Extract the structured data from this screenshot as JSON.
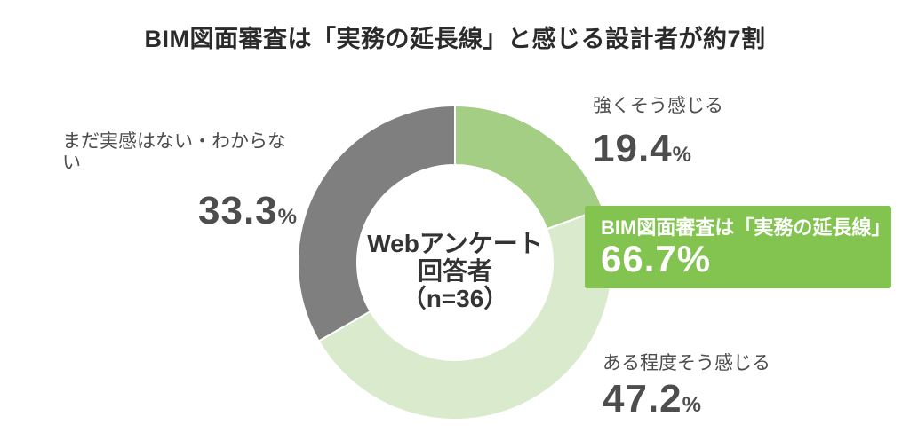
{
  "title": "BIM図面審査は「実務の延長線」と感じる設計者が約7割",
  "donut_center": {
    "line1": "Webアンケート",
    "line2": "回答者",
    "line3": "（n=36）"
  },
  "segments": {
    "strong": {
      "label": "強くそう感じる",
      "value": "19.4",
      "unit": "%"
    },
    "somewhat": {
      "label": "ある程度そう感じる",
      "value": "47.2",
      "unit": "%"
    },
    "unsure": {
      "label": "まだ実感はない・わからない",
      "value": "33.3",
      "unit": "%"
    }
  },
  "callout": {
    "label": "BIM図面審査は「実務の延長線」",
    "value": "66.7%"
  },
  "colors": {
    "slice_strong": "#A3CE84",
    "slice_somewhat": "#DAEACD",
    "slice_unsure": "#7F7F7F",
    "callout_background": "#83C34F",
    "title_text": "#2b2b2b",
    "label_text": "#4d4d4d",
    "callout_text": "#ffffff"
  },
  "chart_data": {
    "type": "pie",
    "donut": true,
    "title": "BIM図面審査は「実務の延長線」と感じる設計者が約7割",
    "center_label": "Webアンケート回答者（n=36）",
    "sample_size": 36,
    "categories": [
      "強くそう感じる",
      "ある程度そう感じる",
      "まだ実感はない・わからない"
    ],
    "values": [
      19.4,
      47.2,
      33.3
    ],
    "colors": [
      "#A3CE84",
      "#DAEACD",
      "#7F7F7F"
    ],
    "start_angle_deg": 0,
    "direction": "clockwise",
    "inner_radius_ratio": 0.62,
    "slice_gap_stroke": "#ffffff",
    "annotation": {
      "label": "BIM図面審査は「実務の延長線」",
      "value": 66.7,
      "color": "#83C34F"
    }
  }
}
